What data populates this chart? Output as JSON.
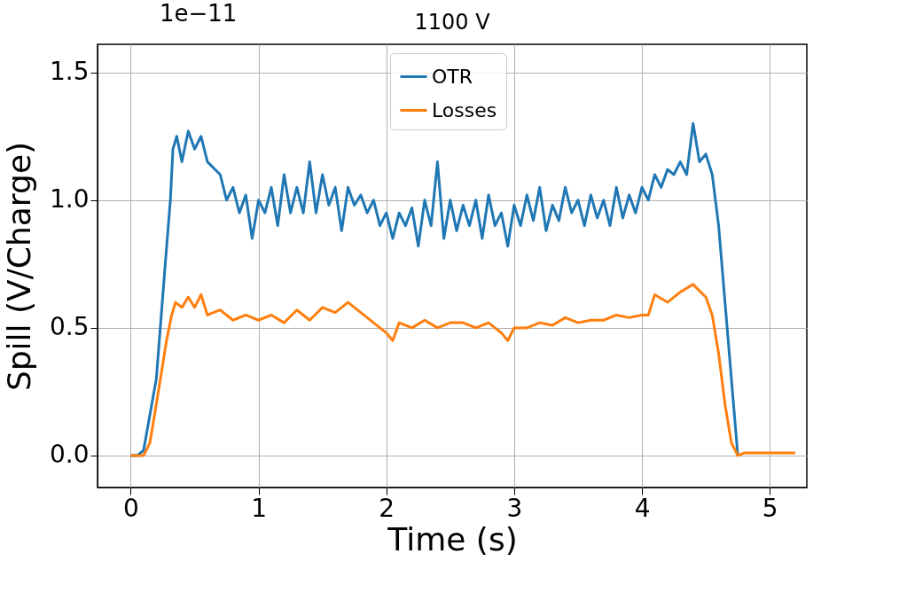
{
  "chart_data": {
    "type": "line",
    "title": "1100 V",
    "xlabel": "Time (s)",
    "ylabel": "Spill (V/Charge)",
    "annotations": [
      "1e−11"
    ],
    "xlim": [
      -0.26,
      5.29
    ],
    "ylim": [
      -0.125,
      1.61
    ],
    "xticks": [
      0,
      1,
      2,
      3,
      4,
      5
    ],
    "yticks": [
      {
        "value": 0,
        "label": "0.0"
      },
      {
        "value": 0.5,
        "label": "0.5"
      },
      {
        "value": 1,
        "label": "1.0"
      },
      {
        "value": 1.5,
        "label": "1.5"
      }
    ],
    "grid": true,
    "legend": "top",
    "marker": "none",
    "line_style": "solid",
    "series": [
      {
        "name": "OTR",
        "color": "#1f77b4",
        "x": [
          0,
          0.05,
          0.1,
          0.2,
          0.27,
          0.31,
          0.33,
          0.36,
          0.4,
          0.45,
          0.5,
          0.55,
          0.6,
          0.7,
          0.75,
          0.8,
          0.85,
          0.9,
          0.95,
          1.0,
          1.05,
          1.1,
          1.15,
          1.2,
          1.25,
          1.3,
          1.35,
          1.4,
          1.45,
          1.5,
          1.55,
          1.6,
          1.65,
          1.7,
          1.75,
          1.8,
          1.85,
          1.9,
          1.95,
          2.0,
          2.05,
          2.1,
          2.15,
          2.2,
          2.25,
          2.3,
          2.35,
          2.4,
          2.45,
          2.5,
          2.55,
          2.6,
          2.65,
          2.7,
          2.75,
          2.8,
          2.85,
          2.9,
          2.95,
          3.0,
          3.05,
          3.1,
          3.15,
          3.2,
          3.25,
          3.3,
          3.35,
          3.4,
          3.45,
          3.5,
          3.55,
          3.6,
          3.65,
          3.7,
          3.75,
          3.8,
          3.85,
          3.9,
          3.95,
          4.0,
          4.05,
          4.1,
          4.15,
          4.2,
          4.25,
          4.3,
          4.35,
          4.4,
          4.45,
          4.5,
          4.55,
          4.6,
          4.65,
          4.7,
          4.75
        ],
        "values": [
          0,
          0,
          0.02,
          0.3,
          0.75,
          1.0,
          1.2,
          1.25,
          1.15,
          1.27,
          1.2,
          1.25,
          1.15,
          1.1,
          1.0,
          1.05,
          0.95,
          1.02,
          0.85,
          1.0,
          0.95,
          1.05,
          0.9,
          1.1,
          0.95,
          1.05,
          0.95,
          1.15,
          0.95,
          1.1,
          0.98,
          1.05,
          0.88,
          1.05,
          0.98,
          1.02,
          0.95,
          1.0,
          0.9,
          0.95,
          0.85,
          0.95,
          0.9,
          0.97,
          0.82,
          1.0,
          0.9,
          1.15,
          0.85,
          1.0,
          0.88,
          0.98,
          0.9,
          1.0,
          0.85,
          1.02,
          0.9,
          0.95,
          0.82,
          0.98,
          0.9,
          1.02,
          0.92,
          1.05,
          0.88,
          0.98,
          0.92,
          1.05,
          0.95,
          1.0,
          0.9,
          1.02,
          0.93,
          1.0,
          0.9,
          1.05,
          0.93,
          1.02,
          0.95,
          1.05,
          1.0,
          1.1,
          1.05,
          1.12,
          1.1,
          1.15,
          1.1,
          1.3,
          1.15,
          1.18,
          1.1,
          0.9,
          0.6,
          0.3,
          0.0
        ]
      },
      {
        "name": "Losses",
        "color": "#ff7f0e",
        "x": [
          0,
          0.1,
          0.15,
          0.2,
          0.28,
          0.32,
          0.35,
          0.4,
          0.45,
          0.5,
          0.55,
          0.6,
          0.7,
          0.8,
          0.9,
          1.0,
          1.1,
          1.2,
          1.3,
          1.4,
          1.5,
          1.6,
          1.7,
          1.8,
          1.9,
          2.0,
          2.05,
          2.1,
          2.2,
          2.3,
          2.4,
          2.5,
          2.6,
          2.7,
          2.8,
          2.9,
          2.95,
          3.0,
          3.1,
          3.2,
          3.3,
          3.4,
          3.5,
          3.6,
          3.7,
          3.8,
          3.9,
          4.0,
          4.05,
          4.1,
          4.2,
          4.3,
          4.4,
          4.5,
          4.55,
          4.6,
          4.65,
          4.7,
          4.75,
          4.8,
          5.0,
          5.2
        ],
        "values": [
          0,
          0,
          0.05,
          0.2,
          0.45,
          0.55,
          0.6,
          0.58,
          0.62,
          0.58,
          0.63,
          0.55,
          0.57,
          0.53,
          0.55,
          0.53,
          0.55,
          0.52,
          0.57,
          0.53,
          0.58,
          0.56,
          0.6,
          0.56,
          0.52,
          0.48,
          0.45,
          0.52,
          0.5,
          0.53,
          0.5,
          0.52,
          0.52,
          0.5,
          0.52,
          0.48,
          0.45,
          0.5,
          0.5,
          0.52,
          0.51,
          0.54,
          0.52,
          0.53,
          0.53,
          0.55,
          0.54,
          0.55,
          0.55,
          0.63,
          0.6,
          0.64,
          0.67,
          0.62,
          0.55,
          0.4,
          0.2,
          0.05,
          0.0,
          0.01,
          0.01,
          0.01
        ]
      }
    ]
  }
}
